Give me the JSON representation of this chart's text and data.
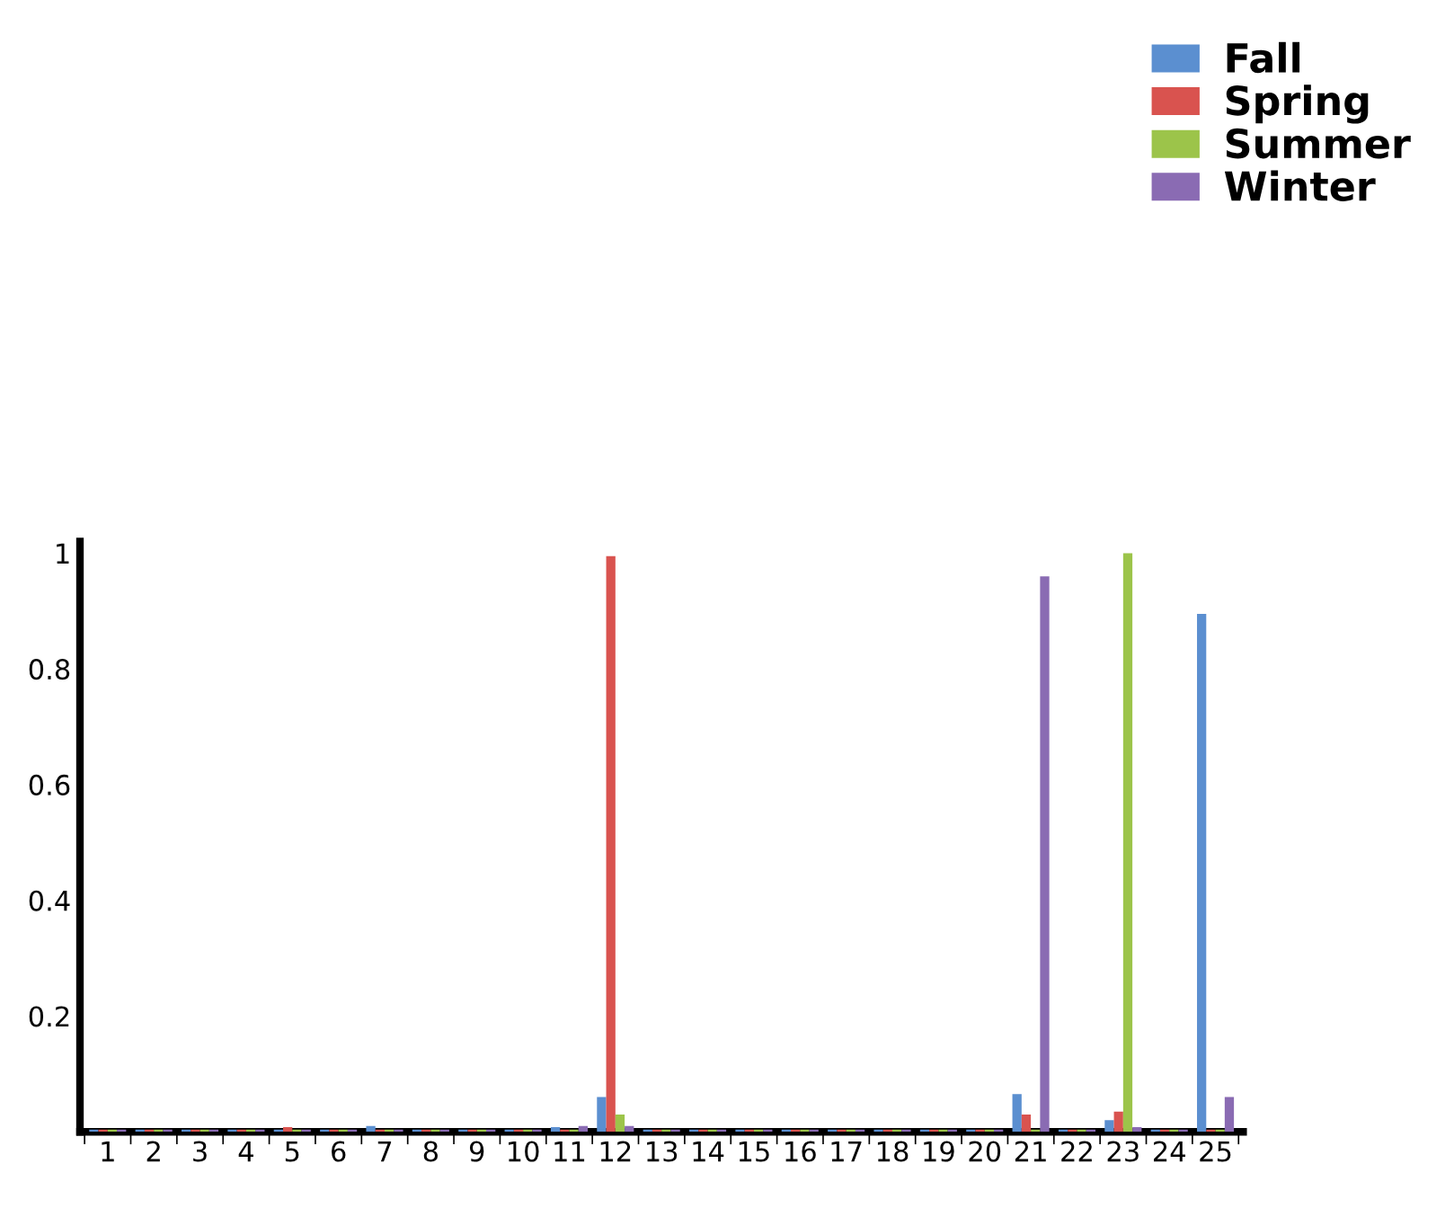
{
  "chart_data": {
    "type": "bar",
    "categories": [
      "1",
      "2",
      "3",
      "4",
      "5",
      "6",
      "7",
      "8",
      "9",
      "10",
      "11",
      "12",
      "13",
      "14",
      "15",
      "16",
      "17",
      "18",
      "19",
      "20",
      "21",
      "22",
      "23",
      "24",
      "25"
    ],
    "series": [
      {
        "name": "Fall",
        "color": "#5b8fd0",
        "values": [
          0.004,
          0.004,
          0.004,
          0.004,
          0.004,
          0.004,
          0.01,
          0.004,
          0.004,
          0.004,
          0.008,
          0.06,
          0.004,
          0.004,
          0.004,
          0.004,
          0.004,
          0.004,
          0.004,
          0.004,
          0.065,
          0.004,
          0.02,
          0.004,
          0.895
        ]
      },
      {
        "name": "Spring",
        "color": "#d9534f",
        "values": [
          0.004,
          0.004,
          0.004,
          0.004,
          0.008,
          0.004,
          0.004,
          0.004,
          0.004,
          0.004,
          0.004,
          0.995,
          0.004,
          0.004,
          0.004,
          0.004,
          0.004,
          0.004,
          0.004,
          0.004,
          0.03,
          0.004,
          0.035,
          0.004,
          0.004
        ]
      },
      {
        "name": "Summer",
        "color": "#9cc44a",
        "values": [
          0.004,
          0.004,
          0.004,
          0.004,
          0.004,
          0.004,
          0.004,
          0.004,
          0.004,
          0.004,
          0.004,
          0.03,
          0.004,
          0.004,
          0.004,
          0.004,
          0.004,
          0.004,
          0.004,
          0.004,
          0.004,
          0.004,
          1.0,
          0.004,
          0.004
        ]
      },
      {
        "name": "Winter",
        "color": "#8a6bb3",
        "values": [
          0.004,
          0.004,
          0.004,
          0.004,
          0.004,
          0.004,
          0.004,
          0.004,
          0.004,
          0.004,
          0.01,
          0.01,
          0.004,
          0.004,
          0.004,
          0.004,
          0.004,
          0.004,
          0.004,
          0.004,
          0.96,
          0.004,
          0.008,
          0.004,
          0.06
        ]
      }
    ],
    "ylim": [
      0,
      1.02
    ],
    "yticks": [
      0.2,
      0.4,
      0.6,
      0.8,
      1
    ],
    "grid": false,
    "legend": "top right"
  }
}
